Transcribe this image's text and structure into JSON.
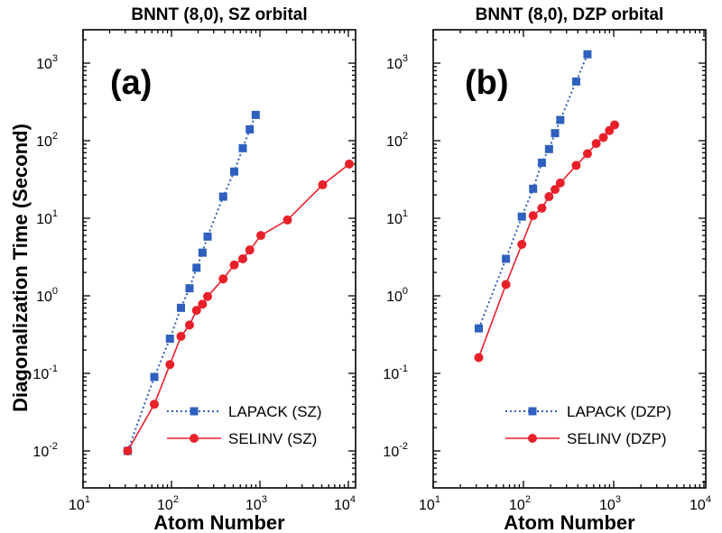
{
  "chart_data": [
    {
      "type": "line",
      "title": "BNNT (8,0), SZ orbital",
      "panel_label": "(a)",
      "xlabel": "Atom Number",
      "ylabel": "Diagonalization Time (Second)",
      "xscale": "log",
      "yscale": "log",
      "xlim": [
        10,
        10000
      ],
      "ylim": [
        0.005,
        3000
      ],
      "xticks": [
        {
          "base": "10",
          "exp": "1"
        },
        {
          "base": "10",
          "exp": "2"
        },
        {
          "base": "10",
          "exp": "3"
        },
        {
          "base": "10",
          "exp": "4"
        }
      ],
      "yticks": [
        {
          "base": "10",
          "exp": "-2"
        },
        {
          "base": "10",
          "exp": "-1"
        },
        {
          "base": "10",
          "exp": "0"
        },
        {
          "base": "10",
          "exp": "1"
        },
        {
          "base": "10",
          "exp": "2"
        },
        {
          "base": "10",
          "exp": "3"
        }
      ],
      "legend_position": "bottom-right",
      "series": [
        {
          "name": "LAPACK (SZ)",
          "color": "#2f5fbf",
          "marker": "square",
          "line_style": "dotted",
          "x": [
            32,
            64,
            96,
            128,
            160,
            192,
            224,
            256,
            384,
            512,
            640,
            768,
            896
          ],
          "y": [
            0.01,
            0.09,
            0.28,
            0.7,
            1.25,
            2.3,
            3.6,
            5.8,
            19,
            40,
            80,
            140,
            215
          ]
        },
        {
          "name": "SELINV  (SZ)",
          "color": "#e8202a",
          "marker": "circle",
          "line_style": "solid",
          "x": [
            32,
            64,
            96,
            128,
            160,
            192,
            224,
            256,
            384,
            512,
            640,
            768,
            1024,
            2048,
            5120,
            10240
          ],
          "y": [
            0.01,
            0.04,
            0.13,
            0.3,
            0.42,
            0.65,
            0.78,
            0.98,
            1.65,
            2.5,
            3.0,
            3.9,
            6.0,
            9.5,
            27,
            50
          ]
        }
      ]
    },
    {
      "type": "line",
      "title": "BNNT (8,0), DZP orbital",
      "panel_label": "(b)",
      "xlabel": "Atom Number",
      "ylabel": "",
      "xscale": "log",
      "yscale": "log",
      "xlim": [
        10,
        10000
      ],
      "ylim": [
        0.005,
        3000
      ],
      "xticks": [
        {
          "base": "10",
          "exp": "1"
        },
        {
          "base": "10",
          "exp": "2"
        },
        {
          "base": "10",
          "exp": "3"
        },
        {
          "base": "10",
          "exp": "4"
        }
      ],
      "yticks": [
        {
          "base": "10",
          "exp": "-2"
        },
        {
          "base": "10",
          "exp": "-1"
        },
        {
          "base": "10",
          "exp": "0"
        },
        {
          "base": "10",
          "exp": "1"
        },
        {
          "base": "10",
          "exp": "2"
        },
        {
          "base": "10",
          "exp": "3"
        }
      ],
      "legend_position": "bottom-right",
      "series": [
        {
          "name": "LAPACK (DZP)",
          "color": "#2f5fbf",
          "marker": "square",
          "line_style": "dotted",
          "x": [
            32,
            64,
            96,
            128,
            160,
            192,
            224,
            256,
            384,
            512
          ],
          "y": [
            0.38,
            3.0,
            10.5,
            24,
            52,
            78,
            125,
            185,
            580,
            1300
          ]
        },
        {
          "name": "SELINV  (DZP)",
          "color": "#e8202a",
          "marker": "circle",
          "line_style": "solid",
          "x": [
            32,
            64,
            96,
            128,
            160,
            192,
            224,
            256,
            384,
            512,
            640,
            768,
            896,
            1024
          ],
          "y": [
            0.16,
            1.4,
            4.6,
            10.8,
            13.5,
            19,
            23.5,
            28.5,
            48,
            68,
            92,
            110,
            135,
            160
          ]
        }
      ]
    }
  ]
}
